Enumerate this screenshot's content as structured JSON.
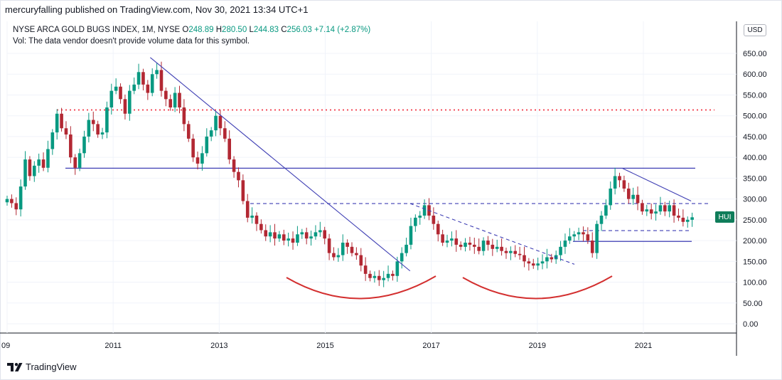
{
  "header": {
    "published": "mercuryfalling published on TradingView.com, Nov 30, 2021 13:34 UTC+1"
  },
  "legend": {
    "symbol": "NYSE ARCA GOLD BUGS INDEX, 1M, NYSE",
    "o_label": "O",
    "o": "248.89",
    "h_label": "H",
    "h": "280.50",
    "l_label": "L",
    "l": "244.83",
    "c_label": "C",
    "c": "256.03",
    "change": "+7.14 (+2.87%)",
    "vol_note": "Vol: The data vendor doesn't provide volume data for this symbol."
  },
  "currency": "USD",
  "price_tag": "HUI",
  "footer": {
    "logo_text": "TradingView"
  },
  "colors": {
    "up": "#089981",
    "down": "#b22833",
    "trendline": "#3f3fb4",
    "dotted_red": "#f23645",
    "arc": "#d32f2f"
  },
  "chart_data": {
    "type": "candlestick",
    "y_ticks": [
      "0.00",
      "50.00",
      "100.00",
      "150.00",
      "200.00",
      "250.00",
      "300.00",
      "350.00",
      "400.00",
      "450.00",
      "500.00",
      "550.00",
      "600.00",
      "650.00"
    ],
    "ylim": [
      -20,
      730
    ],
    "x_ticks": [
      "09",
      "2011",
      "2013",
      "2015",
      "2017",
      "2019",
      "2021"
    ],
    "xlim": [
      2009.0,
      2022.6
    ],
    "candles_monthly_closes": [
      300,
      290,
      275,
      330,
      395,
      355,
      380,
      395,
      375,
      420,
      460,
      505,
      470,
      455,
      400,
      375,
      410,
      450,
      490,
      480,
      455,
      460,
      520,
      560,
      570,
      540,
      505,
      560,
      575,
      605,
      575,
      555,
      600,
      610,
      560,
      540,
      520,
      555,
      520,
      480,
      445,
      400,
      385,
      410,
      450,
      465,
      500,
      470,
      445,
      395,
      365,
      345,
      295,
      255,
      260,
      240,
      225,
      210,
      220,
      205,
      215,
      200,
      205,
      195,
      215,
      220,
      205,
      210,
      220,
      225,
      205,
      170,
      160,
      165,
      195,
      185,
      170,
      165,
      140,
      120,
      110,
      115,
      105,
      110,
      120,
      115,
      150,
      170,
      190,
      235,
      255,
      260,
      285,
      260,
      240,
      215,
      195,
      200,
      205,
      190,
      185,
      195,
      190,
      185,
      175,
      200,
      190,
      180,
      185,
      175,
      170,
      175,
      168,
      165,
      150,
      145,
      140,
      145,
      150,
      160,
      155,
      165,
      185,
      200,
      210,
      215,
      220,
      215,
      200,
      170,
      240,
      260,
      285,
      325,
      355,
      345,
      325,
      300,
      310,
      290,
      270,
      275,
      265,
      270,
      285,
      270,
      285,
      260,
      255,
      245,
      250,
      256
    ],
    "reference_levels": [
      {
        "value": 514,
        "style": "dotted-red"
      },
      {
        "value": 374,
        "style": "solid"
      },
      {
        "value": 289,
        "style": "dashed"
      },
      {
        "value": 224,
        "style": "dashed"
      },
      {
        "value": 198,
        "style": "solid"
      }
    ],
    "trendlines": [
      {
        "from": [
          2011.7,
          640
        ],
        "to": [
          2016.6,
          127
        ]
      },
      {
        "from": [
          2016.6,
          289
        ],
        "to": [
          2019.7,
          143
        ]
      },
      {
        "from": [
          2020.6,
          374
        ],
        "to": [
          2021.9,
          295
        ]
      }
    ]
  }
}
